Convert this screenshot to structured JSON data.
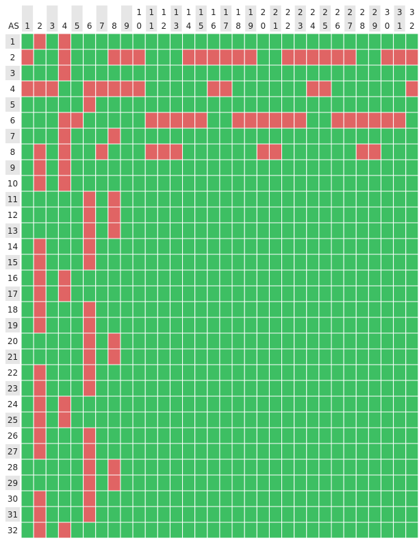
{
  "chart_data": {
    "type": "heatmap",
    "title": "",
    "corner_label": "AS",
    "column_labels": [
      "1",
      "2",
      "3",
      "4",
      "5",
      "6",
      "7",
      "8",
      "9",
      "10",
      "11",
      "12",
      "13",
      "14",
      "15",
      "16",
      "17",
      "18",
      "19",
      "20",
      "21",
      "22",
      "23",
      "24",
      "25",
      "26",
      "27",
      "28",
      "29",
      "30",
      "31",
      "32"
    ],
    "row_labels": [
      "1",
      "2",
      "3",
      "4",
      "5",
      "6",
      "7",
      "8",
      "9",
      "10",
      "11",
      "12",
      "13",
      "14",
      "15",
      "16",
      "17",
      "18",
      "19",
      "20",
      "21",
      "22",
      "23",
      "24",
      "25",
      "26",
      "27",
      "28",
      "29",
      "30",
      "31",
      "32"
    ],
    "values": [
      [
        0,
        1,
        0,
        1,
        0,
        0,
        0,
        0,
        0,
        0,
        0,
        0,
        0,
        0,
        0,
        0,
        0,
        0,
        0,
        0,
        0,
        0,
        0,
        0,
        0,
        0,
        0,
        0,
        0,
        0,
        0,
        0
      ],
      [
        1,
        0,
        0,
        1,
        0,
        0,
        0,
        1,
        1,
        1,
        0,
        0,
        0,
        1,
        1,
        1,
        1,
        1,
        1,
        0,
        0,
        1,
        1,
        1,
        1,
        1,
        1,
        0,
        0,
        1,
        1,
        1
      ],
      [
        0,
        0,
        0,
        1,
        0,
        0,
        0,
        0,
        0,
        0,
        0,
        0,
        0,
        0,
        0,
        0,
        0,
        0,
        0,
        0,
        0,
        0,
        0,
        0,
        0,
        0,
        0,
        0,
        0,
        0,
        0,
        0
      ],
      [
        1,
        1,
        1,
        0,
        0,
        1,
        1,
        1,
        1,
        1,
        0,
        0,
        0,
        0,
        0,
        1,
        1,
        0,
        0,
        0,
        0,
        0,
        0,
        1,
        1,
        0,
        0,
        0,
        0,
        0,
        0,
        1
      ],
      [
        0,
        0,
        0,
        0,
        0,
        1,
        0,
        0,
        0,
        0,
        0,
        0,
        0,
        0,
        0,
        0,
        0,
        0,
        0,
        0,
        0,
        0,
        0,
        0,
        0,
        0,
        0,
        0,
        0,
        0,
        0,
        0
      ],
      [
        0,
        0,
        0,
        1,
        1,
        0,
        0,
        0,
        0,
        0,
        1,
        1,
        1,
        1,
        1,
        0,
        0,
        1,
        1,
        1,
        1,
        1,
        1,
        0,
        0,
        1,
        1,
        1,
        1,
        1,
        1,
        0
      ],
      [
        0,
        0,
        0,
        1,
        0,
        0,
        0,
        1,
        0,
        0,
        0,
        0,
        0,
        0,
        0,
        0,
        0,
        0,
        0,
        0,
        0,
        0,
        0,
        0,
        0,
        0,
        0,
        0,
        0,
        0,
        0,
        0
      ],
      [
        0,
        1,
        0,
        1,
        0,
        0,
        1,
        0,
        0,
        0,
        1,
        1,
        1,
        0,
        0,
        0,
        0,
        0,
        0,
        1,
        1,
        0,
        0,
        0,
        0,
        0,
        0,
        1,
        1,
        0,
        0,
        0
      ],
      [
        0,
        1,
        0,
        1,
        0,
        0,
        0,
        0,
        0,
        0,
        0,
        0,
        0,
        0,
        0,
        0,
        0,
        0,
        0,
        0,
        0,
        0,
        0,
        0,
        0,
        0,
        0,
        0,
        0,
        0,
        0,
        0
      ],
      [
        0,
        1,
        0,
        1,
        0,
        0,
        0,
        0,
        0,
        0,
        0,
        0,
        0,
        0,
        0,
        0,
        0,
        0,
        0,
        0,
        0,
        0,
        0,
        0,
        0,
        0,
        0,
        0,
        0,
        0,
        0,
        0
      ],
      [
        0,
        0,
        0,
        0,
        0,
        1,
        0,
        1,
        0,
        0,
        0,
        0,
        0,
        0,
        0,
        0,
        0,
        0,
        0,
        0,
        0,
        0,
        0,
        0,
        0,
        0,
        0,
        0,
        0,
        0,
        0,
        0
      ],
      [
        0,
        0,
        0,
        0,
        0,
        1,
        0,
        1,
        0,
        0,
        0,
        0,
        0,
        0,
        0,
        0,
        0,
        0,
        0,
        0,
        0,
        0,
        0,
        0,
        0,
        0,
        0,
        0,
        0,
        0,
        0,
        0
      ],
      [
        0,
        0,
        0,
        0,
        0,
        1,
        0,
        1,
        0,
        0,
        0,
        0,
        0,
        0,
        0,
        0,
        0,
        0,
        0,
        0,
        0,
        0,
        0,
        0,
        0,
        0,
        0,
        0,
        0,
        0,
        0,
        0
      ],
      [
        0,
        1,
        0,
        0,
        0,
        1,
        0,
        0,
        0,
        0,
        0,
        0,
        0,
        0,
        0,
        0,
        0,
        0,
        0,
        0,
        0,
        0,
        0,
        0,
        0,
        0,
        0,
        0,
        0,
        0,
        0,
        0
      ],
      [
        0,
        1,
        0,
        0,
        0,
        1,
        0,
        0,
        0,
        0,
        0,
        0,
        0,
        0,
        0,
        0,
        0,
        0,
        0,
        0,
        0,
        0,
        0,
        0,
        0,
        0,
        0,
        0,
        0,
        0,
        0,
        0
      ],
      [
        0,
        1,
        0,
        1,
        0,
        0,
        0,
        0,
        0,
        0,
        0,
        0,
        0,
        0,
        0,
        0,
        0,
        0,
        0,
        0,
        0,
        0,
        0,
        0,
        0,
        0,
        0,
        0,
        0,
        0,
        0,
        0
      ],
      [
        0,
        1,
        0,
        1,
        0,
        0,
        0,
        0,
        0,
        0,
        0,
        0,
        0,
        0,
        0,
        0,
        0,
        0,
        0,
        0,
        0,
        0,
        0,
        0,
        0,
        0,
        0,
        0,
        0,
        0,
        0,
        0
      ],
      [
        0,
        1,
        0,
        0,
        0,
        1,
        0,
        0,
        0,
        0,
        0,
        0,
        0,
        0,
        0,
        0,
        0,
        0,
        0,
        0,
        0,
        0,
        0,
        0,
        0,
        0,
        0,
        0,
        0,
        0,
        0,
        0
      ],
      [
        0,
        1,
        0,
        0,
        0,
        1,
        0,
        0,
        0,
        0,
        0,
        0,
        0,
        0,
        0,
        0,
        0,
        0,
        0,
        0,
        0,
        0,
        0,
        0,
        0,
        0,
        0,
        0,
        0,
        0,
        0,
        0
      ],
      [
        0,
        0,
        0,
        0,
        0,
        1,
        0,
        1,
        0,
        0,
        0,
        0,
        0,
        0,
        0,
        0,
        0,
        0,
        0,
        0,
        0,
        0,
        0,
        0,
        0,
        0,
        0,
        0,
        0,
        0,
        0,
        0
      ],
      [
        0,
        0,
        0,
        0,
        0,
        1,
        0,
        1,
        0,
        0,
        0,
        0,
        0,
        0,
        0,
        0,
        0,
        0,
        0,
        0,
        0,
        0,
        0,
        0,
        0,
        0,
        0,
        0,
        0,
        0,
        0,
        0
      ],
      [
        0,
        1,
        0,
        0,
        0,
        1,
        0,
        0,
        0,
        0,
        0,
        0,
        0,
        0,
        0,
        0,
        0,
        0,
        0,
        0,
        0,
        0,
        0,
        0,
        0,
        0,
        0,
        0,
        0,
        0,
        0,
        0
      ],
      [
        0,
        1,
        0,
        0,
        0,
        1,
        0,
        0,
        0,
        0,
        0,
        0,
        0,
        0,
        0,
        0,
        0,
        0,
        0,
        0,
        0,
        0,
        0,
        0,
        0,
        0,
        0,
        0,
        0,
        0,
        0,
        0
      ],
      [
        0,
        1,
        0,
        1,
        0,
        0,
        0,
        0,
        0,
        0,
        0,
        0,
        0,
        0,
        0,
        0,
        0,
        0,
        0,
        0,
        0,
        0,
        0,
        0,
        0,
        0,
        0,
        0,
        0,
        0,
        0,
        0
      ],
      [
        0,
        1,
        0,
        1,
        0,
        0,
        0,
        0,
        0,
        0,
        0,
        0,
        0,
        0,
        0,
        0,
        0,
        0,
        0,
        0,
        0,
        0,
        0,
        0,
        0,
        0,
        0,
        0,
        0,
        0,
        0,
        0
      ],
      [
        0,
        1,
        0,
        0,
        0,
        1,
        0,
        0,
        0,
        0,
        0,
        0,
        0,
        0,
        0,
        0,
        0,
        0,
        0,
        0,
        0,
        0,
        0,
        0,
        0,
        0,
        0,
        0,
        0,
        0,
        0,
        0
      ],
      [
        0,
        1,
        0,
        0,
        0,
        1,
        0,
        0,
        0,
        0,
        0,
        0,
        0,
        0,
        0,
        0,
        0,
        0,
        0,
        0,
        0,
        0,
        0,
        0,
        0,
        0,
        0,
        0,
        0,
        0,
        0,
        0
      ],
      [
        0,
        0,
        0,
        0,
        0,
        1,
        0,
        1,
        0,
        0,
        0,
        0,
        0,
        0,
        0,
        0,
        0,
        0,
        0,
        0,
        0,
        0,
        0,
        0,
        0,
        0,
        0,
        0,
        0,
        0,
        0,
        0
      ],
      [
        0,
        0,
        0,
        0,
        0,
        1,
        0,
        1,
        0,
        0,
        0,
        0,
        0,
        0,
        0,
        0,
        0,
        0,
        0,
        0,
        0,
        0,
        0,
        0,
        0,
        0,
        0,
        0,
        0,
        0,
        0,
        0
      ],
      [
        0,
        1,
        0,
        0,
        0,
        1,
        0,
        0,
        0,
        0,
        0,
        0,
        0,
        0,
        0,
        0,
        0,
        0,
        0,
        0,
        0,
        0,
        0,
        0,
        0,
        0,
        0,
        0,
        0,
        0,
        0,
        0
      ],
      [
        0,
        1,
        0,
        0,
        0,
        1,
        0,
        0,
        0,
        0,
        0,
        0,
        0,
        0,
        0,
        0,
        0,
        0,
        0,
        0,
        0,
        0,
        0,
        0,
        0,
        0,
        0,
        0,
        0,
        0,
        0,
        0
      ],
      [
        0,
        1,
        0,
        1,
        0,
        0,
        0,
        0,
        0,
        0,
        0,
        0,
        0,
        0,
        0,
        0,
        0,
        0,
        0,
        0,
        0,
        0,
        0,
        0,
        0,
        0,
        0,
        0,
        0,
        0,
        0,
        0
      ]
    ],
    "legend": "none",
    "grid": true,
    "colors": {
      "0": "#3dbf63",
      "1": "#e06464",
      "grid_line": "#ffffff",
      "label_background": "#e6e6e6",
      "label_text": "#222222"
    }
  }
}
